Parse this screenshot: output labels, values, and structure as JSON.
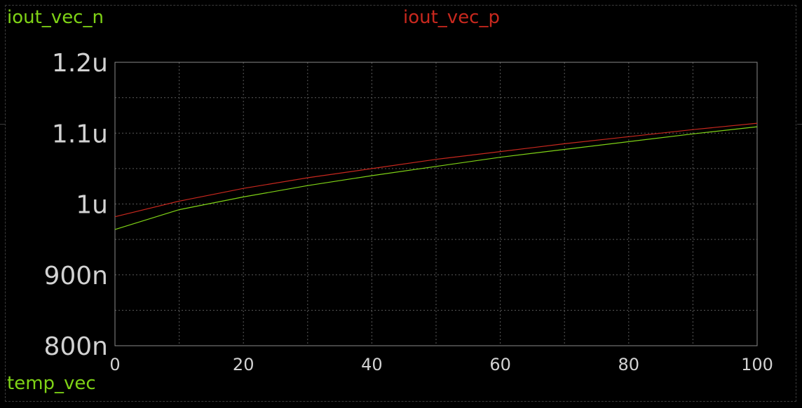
{
  "chart_data": {
    "type": "line",
    "x": [
      0,
      10,
      20,
      30,
      40,
      50,
      60,
      70,
      80,
      90,
      100
    ],
    "xlabel": "temp_vec",
    "xlim": [
      0,
      100
    ],
    "ylim": [
      8e-07,
      1.2e-06
    ],
    "x_ticks": [
      "0",
      "20",
      "40",
      "60",
      "80",
      "100"
    ],
    "x_tick_values": [
      0,
      20,
      40,
      60,
      80,
      100
    ],
    "y_ticks": [
      "1.2u",
      "1.1u",
      "1u",
      "900n",
      "800n"
    ],
    "y_tick_values": [
      1.2e-06,
      1.1e-06,
      1e-06,
      9e-07,
      8e-07
    ],
    "grid": true,
    "series": [
      {
        "name": "iout_vec_n",
        "color": "#7fd316",
        "values": [
          9.64e-07,
          9.92e-07,
          1.01e-06,
          1.026e-06,
          1.04e-06,
          1.053e-06,
          1.066e-06,
          1.077e-06,
          1.088e-06,
          1.099e-06,
          1.109e-06
        ]
      },
      {
        "name": "iout_vec_p",
        "color": "#c8281e",
        "values": [
          9.82e-07,
          1.004e-06,
          1.022e-06,
          1.037e-06,
          1.05e-06,
          1.063e-06,
          1.074e-06,
          1.085e-06,
          1.095e-06,
          1.105e-06,
          1.114e-06
        ]
      }
    ]
  },
  "colors": {
    "background": "#000000",
    "grid": "#5a5a5a",
    "axis": "#8a8a8a",
    "tick_text": "#d2d2d2"
  }
}
